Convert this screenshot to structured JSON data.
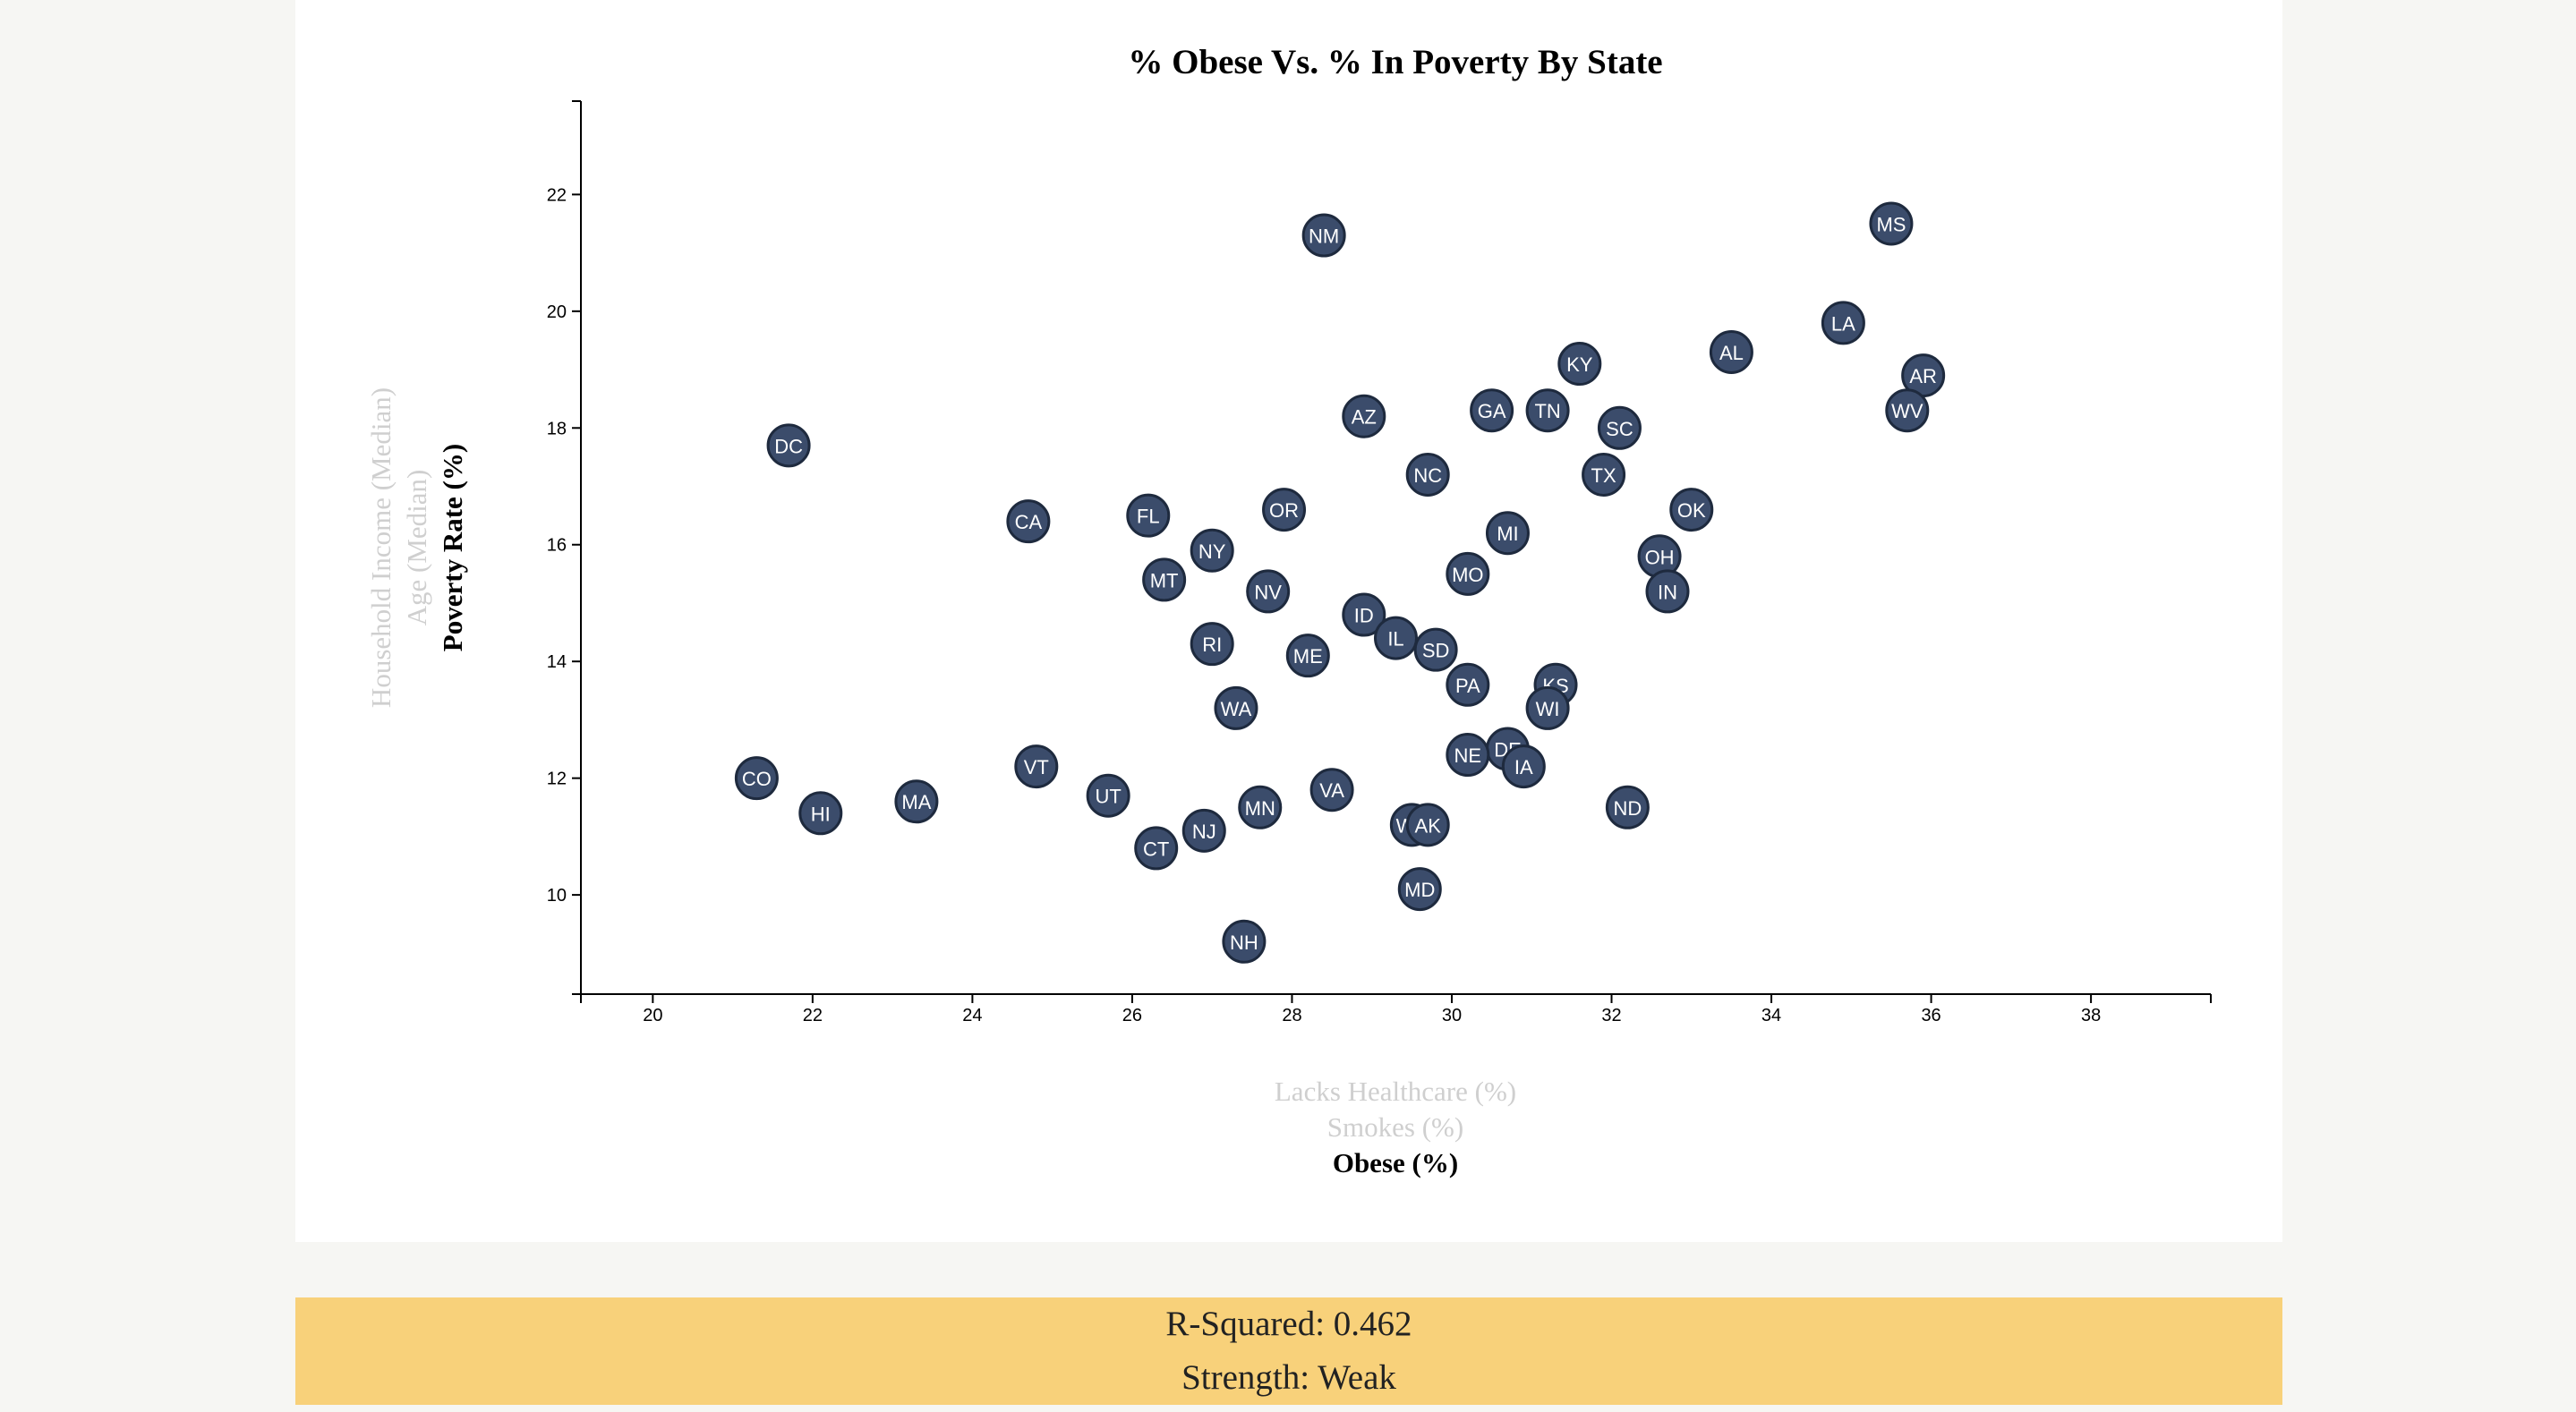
{
  "chart_data": {
    "type": "scatter",
    "title": "% Obese Vs. % In Poverty By State",
    "x_labels": [
      {
        "text": "Lacks Healthcare (%)",
        "active": false
      },
      {
        "text": "Smokes (%)",
        "active": false
      },
      {
        "text": "Obese (%)",
        "active": true
      }
    ],
    "y_labels": [
      {
        "text": "Household Income (Median)",
        "active": false
      },
      {
        "text": "Age (Median)",
        "active": false
      },
      {
        "text": "Poverty Rate (%)",
        "active": true
      }
    ],
    "xlim": [
      19.1,
      39.5
    ],
    "ylim": [
      8.3,
      23.6
    ],
    "x_ticks": [
      20,
      22,
      24,
      26,
      28,
      30,
      32,
      34,
      36,
      38
    ],
    "y_ticks": [
      10,
      12,
      14,
      16,
      18,
      20,
      22
    ],
    "points": [
      {
        "label": "NM",
        "x": 28.4,
        "y": 21.3
      },
      {
        "label": "MS",
        "x": 35.5,
        "y": 21.5
      },
      {
        "label": "LA",
        "x": 34.9,
        "y": 19.8
      },
      {
        "label": "AL",
        "x": 33.5,
        "y": 19.3
      },
      {
        "label": "KY",
        "x": 31.6,
        "y": 19.1
      },
      {
        "label": "AR",
        "x": 35.9,
        "y": 18.9
      },
      {
        "label": "WV",
        "x": 35.7,
        "y": 18.3
      },
      {
        "label": "GA",
        "x": 30.5,
        "y": 18.3
      },
      {
        "label": "TN",
        "x": 31.2,
        "y": 18.3
      },
      {
        "label": "AZ",
        "x": 28.9,
        "y": 18.2
      },
      {
        "label": "SC",
        "x": 32.1,
        "y": 18.0
      },
      {
        "label": "DC",
        "x": 21.7,
        "y": 17.7
      },
      {
        "label": "NC",
        "x": 29.7,
        "y": 17.2
      },
      {
        "label": "TX",
        "x": 31.9,
        "y": 17.2
      },
      {
        "label": "OK",
        "x": 33.0,
        "y": 16.6
      },
      {
        "label": "OR",
        "x": 27.9,
        "y": 16.6
      },
      {
        "label": "FL",
        "x": 26.2,
        "y": 16.5
      },
      {
        "label": "CA",
        "x": 24.7,
        "y": 16.4
      },
      {
        "label": "MI",
        "x": 30.7,
        "y": 16.2
      },
      {
        "label": "NY",
        "x": 27.0,
        "y": 15.9
      },
      {
        "label": "OH",
        "x": 32.6,
        "y": 15.8
      },
      {
        "label": "MO",
        "x": 30.2,
        "y": 15.5
      },
      {
        "label": "MT",
        "x": 26.4,
        "y": 15.4
      },
      {
        "label": "NV",
        "x": 27.7,
        "y": 15.2
      },
      {
        "label": "IN",
        "x": 32.7,
        "y": 15.2
      },
      {
        "label": "ID",
        "x": 28.9,
        "y": 14.8
      },
      {
        "label": "IL",
        "x": 29.3,
        "y": 14.4
      },
      {
        "label": "SD",
        "x": 29.8,
        "y": 14.2
      },
      {
        "label": "RI",
        "x": 27.0,
        "y": 14.3
      },
      {
        "label": "ME",
        "x": 28.2,
        "y": 14.1
      },
      {
        "label": "PA",
        "x": 30.2,
        "y": 13.6
      },
      {
        "label": "KS",
        "x": 31.3,
        "y": 13.6
      },
      {
        "label": "WA",
        "x": 27.3,
        "y": 13.2
      },
      {
        "label": "WI",
        "x": 31.2,
        "y": 13.2
      },
      {
        "label": "DE",
        "x": 30.7,
        "y": 12.5
      },
      {
        "label": "NE",
        "x": 30.2,
        "y": 12.4
      },
      {
        "label": "IA",
        "x": 30.9,
        "y": 12.2
      },
      {
        "label": "VT",
        "x": 24.8,
        "y": 12.2
      },
      {
        "label": "CO",
        "x": 21.3,
        "y": 12.0
      },
      {
        "label": "VA",
        "x": 28.5,
        "y": 11.8
      },
      {
        "label": "UT",
        "x": 25.7,
        "y": 11.7
      },
      {
        "label": "MA",
        "x": 23.3,
        "y": 11.6
      },
      {
        "label": "MN",
        "x": 27.6,
        "y": 11.5
      },
      {
        "label": "ND",
        "x": 32.2,
        "y": 11.5
      },
      {
        "label": "HI",
        "x": 22.1,
        "y": 11.4
      },
      {
        "label": "WY",
        "x": 29.5,
        "y": 11.2
      },
      {
        "label": "AK",
        "x": 29.7,
        "y": 11.2
      },
      {
        "label": "NJ",
        "x": 26.9,
        "y": 11.1
      },
      {
        "label": "CT",
        "x": 26.3,
        "y": 10.8
      },
      {
        "label": "MD",
        "x": 29.6,
        "y": 10.1
      },
      {
        "label": "NH",
        "x": 27.4,
        "y": 9.2
      }
    ]
  },
  "stats": {
    "r_squared": "R-Squared: 0.462",
    "strength": "Strength: Weak"
  },
  "colors": {
    "panel": "#ffffff",
    "background": "#f6f6f3",
    "circle_fill": "#3b4c6b",
    "circle_stroke": "#1e2a3e",
    "stats_bar": "#f8d17a",
    "inactive_label": "#cfcfcf"
  }
}
